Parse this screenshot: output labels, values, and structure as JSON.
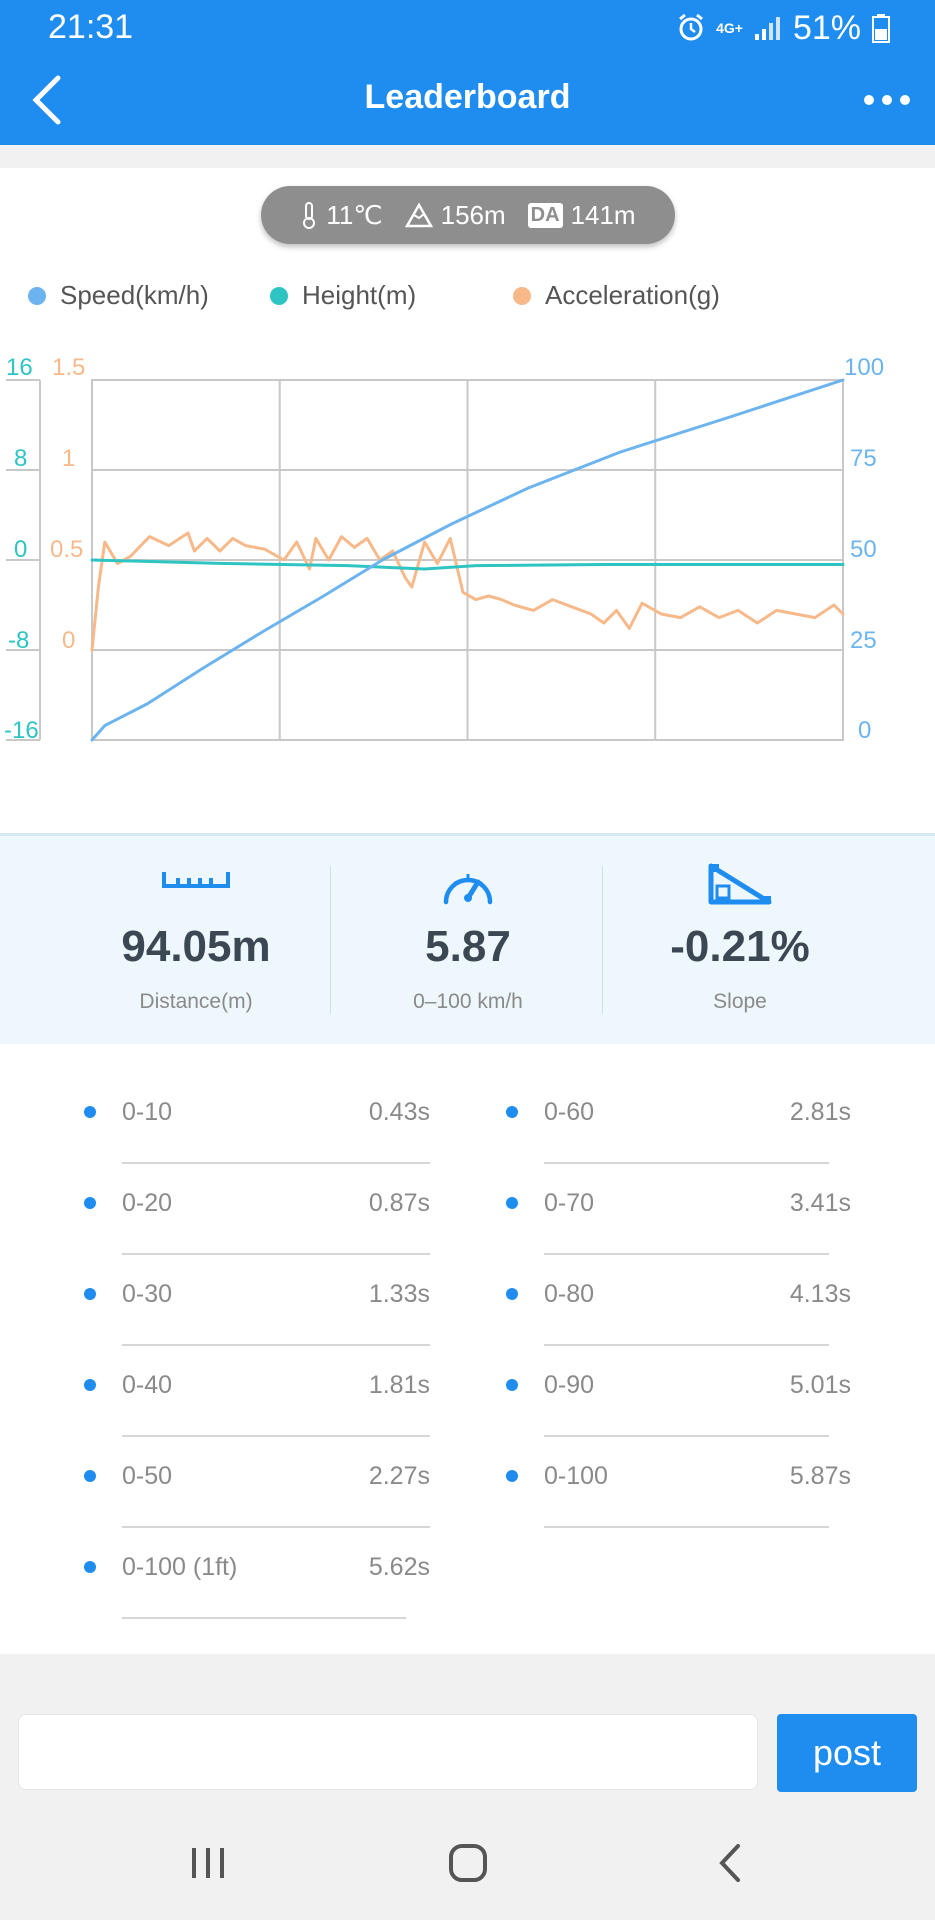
{
  "status_bar": {
    "time": "21:31",
    "network": "4G+",
    "battery": "51%"
  },
  "app_bar": {
    "title": "Leaderboard",
    "back_icon": "chevron-left-icon",
    "more_icon": "more-horizontal-icon"
  },
  "conditions": {
    "temperature": "11℃",
    "altitude": "156m",
    "density_altitude_badge": "DA",
    "density_altitude": "141m"
  },
  "legend": [
    {
      "label": "Speed(km/h)",
      "color": "#6cb4ef"
    },
    {
      "label": "Height(m)",
      "color": "#2ec4c4"
    },
    {
      "label": "Acceleration(g)",
      "color": "#f7b98a"
    }
  ],
  "chart_data": {
    "type": "line",
    "grid": true,
    "legend_position": "top",
    "axes": {
      "height_ticks": [
        "16",
        "8",
        "0",
        "-8",
        "-16"
      ],
      "height_range": [
        -16,
        16
      ],
      "accel_ticks": [
        "1.5",
        "1",
        "0.5",
        "0"
      ],
      "accel_range": [
        -0.5,
        1.5
      ],
      "speed_ticks": [
        "100",
        "75",
        "50",
        "25",
        "0"
      ],
      "speed_range": [
        0,
        100
      ]
    },
    "x_range": [
      0,
      5.87
    ],
    "series": [
      {
        "name": "Speed(km/h)",
        "axis": "right",
        "x": [
          0,
          0.1,
          0.43,
          0.87,
          1.33,
          1.81,
          2.27,
          2.81,
          3.41,
          4.13,
          5.01,
          5.87
        ],
        "y": [
          0,
          4,
          10,
          20,
          30,
          40,
          50,
          60,
          70,
          80,
          90,
          100
        ]
      },
      {
        "name": "Height(m)",
        "axis": "left",
        "x": [
          0,
          1,
          2,
          2.6,
          3,
          4,
          5,
          5.87
        ],
        "y": [
          0,
          -0.3,
          -0.5,
          -0.8,
          -0.5,
          -0.4,
          -0.4,
          -0.4
        ]
      },
      {
        "name": "Acceleration(g)",
        "axis": "accel",
        "x": [
          0,
          0.05,
          0.1,
          0.2,
          0.3,
          0.45,
          0.6,
          0.75,
          0.8,
          0.9,
          1.0,
          1.1,
          1.2,
          1.35,
          1.5,
          1.6,
          1.7,
          1.75,
          1.85,
          1.95,
          2.05,
          2.15,
          2.25,
          2.35,
          2.45,
          2.5,
          2.6,
          2.7,
          2.8,
          2.9,
          3.0,
          3.1,
          3.2,
          3.3,
          3.45,
          3.6,
          3.75,
          3.9,
          4.0,
          4.1,
          4.2,
          4.3,
          4.45,
          4.6,
          4.75,
          4.9,
          5.05,
          5.2,
          5.35,
          5.5,
          5.65,
          5.8,
          5.87
        ],
        "y": [
          0.0,
          0.35,
          0.6,
          0.48,
          0.52,
          0.63,
          0.58,
          0.65,
          0.55,
          0.62,
          0.55,
          0.62,
          0.58,
          0.56,
          0.5,
          0.6,
          0.45,
          0.62,
          0.5,
          0.63,
          0.57,
          0.62,
          0.5,
          0.55,
          0.4,
          0.35,
          0.6,
          0.48,
          0.62,
          0.32,
          0.28,
          0.3,
          0.28,
          0.25,
          0.22,
          0.28,
          0.24,
          0.2,
          0.15,
          0.22,
          0.12,
          0.26,
          0.2,
          0.18,
          0.24,
          0.18,
          0.22,
          0.15,
          0.22,
          0.2,
          0.18,
          0.25,
          0.2
        ]
      }
    ]
  },
  "stats": [
    {
      "icon": "ruler-icon",
      "value": "94.05m",
      "label": "Distance(m)"
    },
    {
      "icon": "speedometer-icon",
      "value": "5.87",
      "label": "0–100 km/h"
    },
    {
      "icon": "slope-icon",
      "value": "-0.21%",
      "label": "Slope"
    }
  ],
  "splits": [
    {
      "label": "0-10",
      "value": "0.43s"
    },
    {
      "label": "0-60",
      "value": "2.81s"
    },
    {
      "label": "0-20",
      "value": "0.87s"
    },
    {
      "label": "0-70",
      "value": "3.41s"
    },
    {
      "label": "0-30",
      "value": "1.33s"
    },
    {
      "label": "0-80",
      "value": "4.13s"
    },
    {
      "label": "0-40",
      "value": "1.81s"
    },
    {
      "label": "0-90",
      "value": "5.01s"
    },
    {
      "label": "0-50",
      "value": "2.27s"
    },
    {
      "label": "0-100",
      "value": "5.87s"
    },
    {
      "label": "0-100 (1ft)",
      "value": "5.62s"
    }
  ],
  "comment": {
    "placeholder": "",
    "post_label": "post"
  },
  "nav": {
    "recents_icon": "recents-icon",
    "home_icon": "home-icon",
    "back_icon": "back-icon"
  },
  "colors": {
    "primary": "#1f8cf0",
    "speed": "#6cb4ef",
    "height": "#2ec4c4",
    "accel": "#f7b98a"
  }
}
